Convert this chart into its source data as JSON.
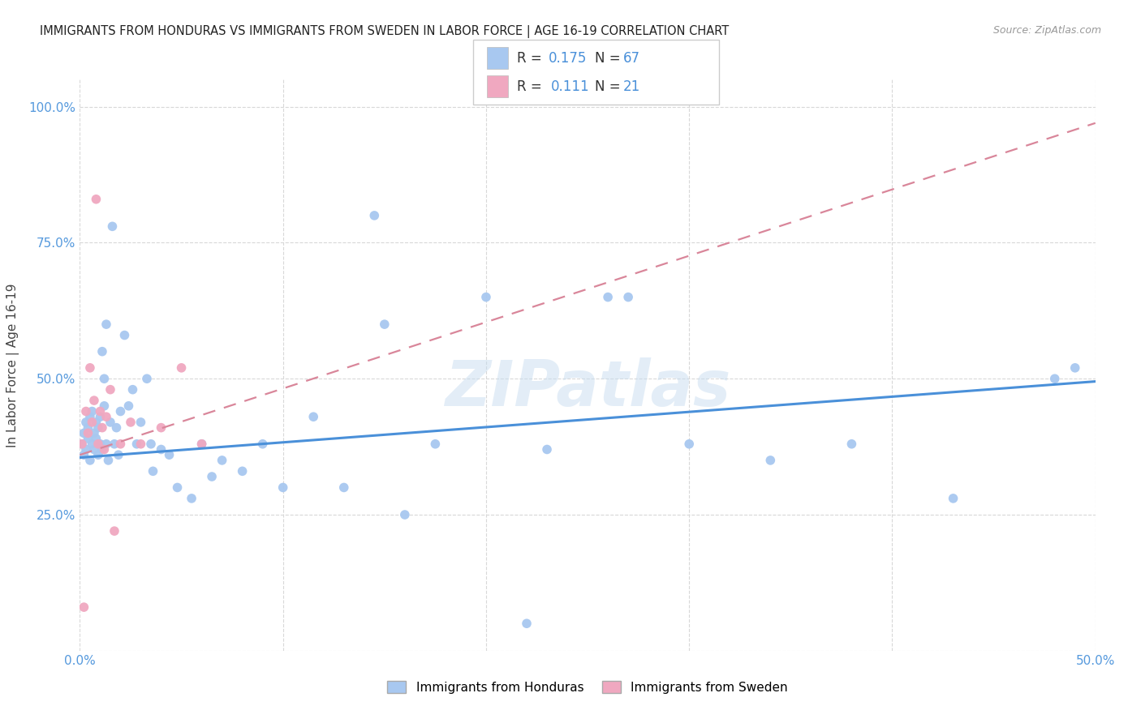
{
  "title": "IMMIGRANTS FROM HONDURAS VS IMMIGRANTS FROM SWEDEN IN LABOR FORCE | AGE 16-19 CORRELATION CHART",
  "source": "Source: ZipAtlas.com",
  "ylabel": "In Labor Force | Age 16-19",
  "xlim": [
    0.0,
    0.5
  ],
  "ylim": [
    0.0,
    1.05
  ],
  "xtick_vals": [
    0.0,
    0.1,
    0.2,
    0.3,
    0.4,
    0.5
  ],
  "ytick_vals": [
    0.0,
    0.25,
    0.5,
    0.75,
    1.0
  ],
  "xtick_labels": [
    "0.0%",
    "",
    "",
    "",
    "",
    "50.0%"
  ],
  "ytick_labels": [
    "",
    "25.0%",
    "50.0%",
    "75.0%",
    "100.0%"
  ],
  "watermark": "ZIPatlas",
  "legend_R_honduras": "0.175",
  "legend_N_honduras": "67",
  "legend_R_sweden": "0.111",
  "legend_N_sweden": "21",
  "color_honduras": "#a8c8f0",
  "color_sweden": "#f0a8c0",
  "color_line_honduras": "#4a90d9",
  "color_line_sweden": "#d9869a",
  "tick_color": "#5599dd",
  "honduras_x": [
    0.001,
    0.002,
    0.002,
    0.003,
    0.003,
    0.004,
    0.004,
    0.005,
    0.005,
    0.006,
    0.006,
    0.007,
    0.007,
    0.008,
    0.008,
    0.009,
    0.009,
    0.01,
    0.01,
    0.011,
    0.011,
    0.012,
    0.012,
    0.013,
    0.013,
    0.014,
    0.015,
    0.016,
    0.017,
    0.018,
    0.019,
    0.02,
    0.022,
    0.024,
    0.026,
    0.028,
    0.03,
    0.033,
    0.036,
    0.04,
    0.044,
    0.048,
    0.055,
    0.06,
    0.065,
    0.07,
    0.08,
    0.09,
    0.1,
    0.115,
    0.13,
    0.145,
    0.16,
    0.175,
    0.2,
    0.23,
    0.26,
    0.3,
    0.34,
    0.38,
    0.22,
    0.43,
    0.27,
    0.49,
    0.15,
    0.48,
    0.035
  ],
  "honduras_y": [
    0.38,
    0.4,
    0.36,
    0.42,
    0.37,
    0.39,
    0.41,
    0.35,
    0.43,
    0.38,
    0.44,
    0.37,
    0.4,
    0.39,
    0.42,
    0.36,
    0.41,
    0.38,
    0.43,
    0.37,
    0.55,
    0.45,
    0.5,
    0.38,
    0.6,
    0.35,
    0.42,
    0.78,
    0.38,
    0.41,
    0.36,
    0.44,
    0.58,
    0.45,
    0.48,
    0.38,
    0.42,
    0.5,
    0.33,
    0.37,
    0.36,
    0.3,
    0.28,
    0.38,
    0.32,
    0.35,
    0.33,
    0.38,
    0.3,
    0.43,
    0.3,
    0.8,
    0.25,
    0.38,
    0.65,
    0.37,
    0.65,
    0.38,
    0.35,
    0.38,
    0.05,
    0.28,
    0.65,
    0.52,
    0.6,
    0.5,
    0.38
  ],
  "sweden_x": [
    0.001,
    0.002,
    0.003,
    0.004,
    0.005,
    0.006,
    0.007,
    0.008,
    0.009,
    0.01,
    0.011,
    0.012,
    0.013,
    0.015,
    0.017,
    0.02,
    0.025,
    0.03,
    0.04,
    0.05,
    0.06
  ],
  "sweden_y": [
    0.38,
    0.08,
    0.44,
    0.4,
    0.52,
    0.42,
    0.46,
    0.83,
    0.38,
    0.44,
    0.41,
    0.37,
    0.43,
    0.48,
    0.22,
    0.38,
    0.42,
    0.38,
    0.41,
    0.52,
    0.38
  ],
  "line_honduras_x0": 0.0,
  "line_honduras_y0": 0.355,
  "line_honduras_x1": 0.5,
  "line_honduras_y1": 0.495,
  "line_sweden_x0": 0.0,
  "line_sweden_y0": 0.36,
  "line_sweden_x1": 0.5,
  "line_sweden_y1": 0.97
}
